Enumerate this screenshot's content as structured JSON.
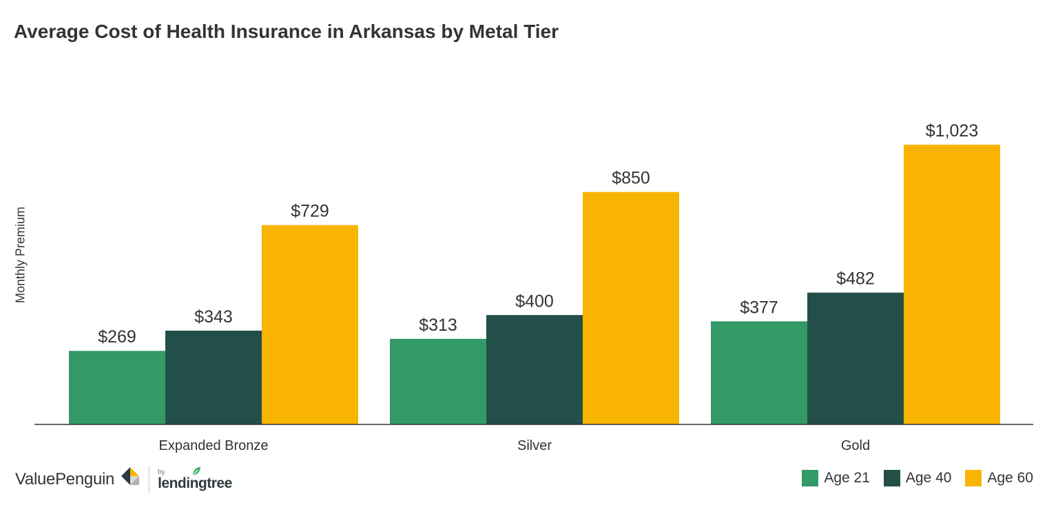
{
  "chart_data": {
    "type": "bar",
    "title": "Average Cost of Health Insurance in Arkansas by Metal Tier",
    "ylabel": "Monthly Premium",
    "xlabel": "",
    "categories": [
      "Expanded Bronze",
      "Silver",
      "Gold"
    ],
    "series": [
      {
        "name": "Age 21",
        "color": "#339966",
        "values": [
          269,
          313,
          377
        ],
        "labels": [
          "$269",
          "$313",
          "$377"
        ]
      },
      {
        "name": "Age 40",
        "color": "#224f48",
        "values": [
          343,
          400,
          482
        ],
        "labels": [
          "$343",
          "$400",
          "$482"
        ]
      },
      {
        "name": "Age 60",
        "color": "#f8b400",
        "values": [
          729,
          850,
          1023
        ],
        "labels": [
          "$729",
          "$850",
          "$1,023"
        ]
      }
    ],
    "ylim": [
      0,
      1023
    ],
    "grid": false,
    "legend": "bottom-right"
  },
  "branding": {
    "valuepenguin": "ValuePenguin",
    "by": "by",
    "lendingtree": "lendingtree",
    "icons": [
      "valuepenguin-logo-icon",
      "lendingtree-leaf-icon"
    ]
  }
}
